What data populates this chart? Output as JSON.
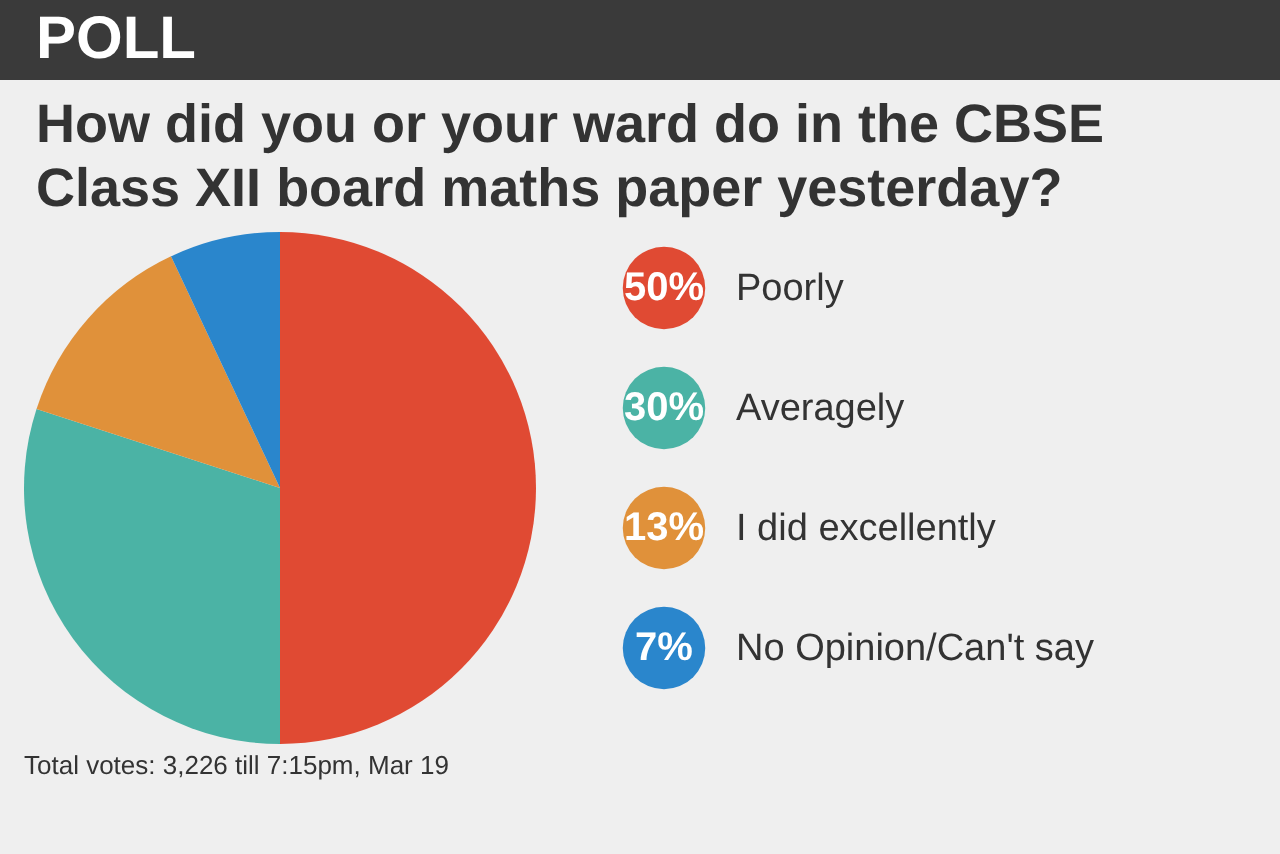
{
  "chart_data": {
    "type": "pie",
    "title": "POLL",
    "subtitle": "How did you or your ward do in the CBSE Class XII board maths paper yesterday?",
    "categories": [
      "Poorly",
      "Averagely",
      "I did excellently",
      "No Opinion/Can't say"
    ],
    "values": [
      50,
      30,
      13,
      7
    ],
    "colors": [
      "#e04a33",
      "#4bb3a5",
      "#e0913a",
      "#2a86cc"
    ],
    "value_labels": [
      "50%",
      "30%",
      "13%",
      "7%"
    ],
    "legend": "right",
    "annotations": [
      "Total votes: 3,226 till 7:15pm, Mar 19"
    ]
  }
}
